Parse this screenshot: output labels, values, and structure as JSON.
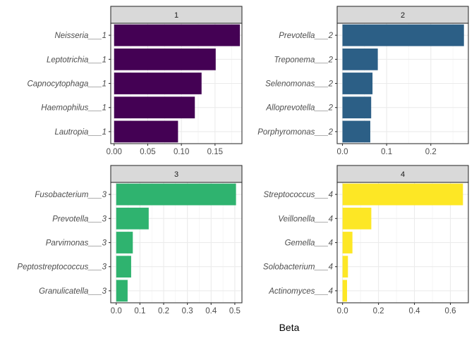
{
  "chart_data": {
    "type": "bar",
    "orientation": "horizontal",
    "xlabel": "Beta",
    "grid": true,
    "panels": [
      {
        "strip": "1",
        "color": "#440154",
        "xlim": [
          -0.005,
          0.19
        ],
        "xticks": [
          0,
          0.05,
          0.1,
          0.15
        ],
        "xtick_labels": [
          "0.00",
          "0.05",
          "0.10",
          "0.15"
        ],
        "categories": [
          "Neisseria___1",
          "Leptotrichia___1",
          "Capnocytophaga___1",
          "Haemophilus___1",
          "Lautropia___1"
        ],
        "values": [
          0.187,
          0.151,
          0.13,
          0.12,
          0.095
        ]
      },
      {
        "strip": "2",
        "color": "#2c5f86",
        "xlim": [
          -0.012,
          0.285
        ],
        "xticks": [
          0,
          0.1,
          0.2
        ],
        "xtick_labels": [
          "0.0",
          "0.1",
          "0.2"
        ],
        "categories": [
          "Prevotella___2",
          "Treponema___2",
          "Selenomonas___2",
          "Alloprevotella___2",
          "Porphyromonas___2"
        ],
        "values": [
          0.275,
          0.08,
          0.068,
          0.065,
          0.063
        ]
      },
      {
        "strip": "3",
        "color": "#2fb36f",
        "xlim": [
          -0.023,
          0.53
        ],
        "xticks": [
          0,
          0.1,
          0.2,
          0.3,
          0.4,
          0.5
        ],
        "xtick_labels": [
          "0.0",
          "0.1",
          "0.2",
          "0.3",
          "0.4",
          "0.5"
        ],
        "categories": [
          "Fusobacterium___3",
          "Prevotella___3",
          "Parvimonas___3",
          "Peptostreptococcus___3",
          "Granulicatella___3"
        ],
        "values": [
          0.505,
          0.137,
          0.07,
          0.063,
          0.048
        ]
      },
      {
        "strip": "4",
        "color": "#fde725",
        "xlim": [
          -0.03,
          0.7
        ],
        "xticks": [
          0,
          0.2,
          0.4,
          0.6
        ],
        "xtick_labels": [
          "0.0",
          "0.2",
          "0.4",
          "0.6"
        ],
        "categories": [
          "Streptococcus___4",
          "Veillonella___4",
          "Gemella___4",
          "Solobacterium___4",
          "Actinomyces___4"
        ],
        "values": [
          0.67,
          0.16,
          0.055,
          0.03,
          0.025
        ]
      }
    ]
  }
}
